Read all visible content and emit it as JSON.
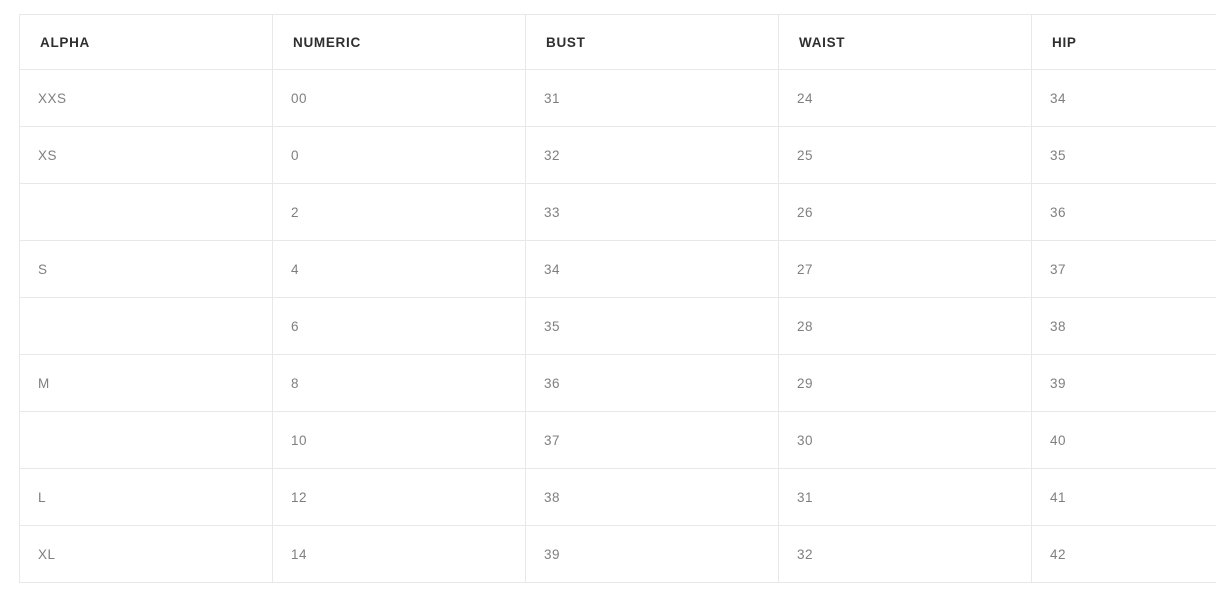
{
  "table": {
    "columns": [
      "ALPHA",
      "NUMERIC",
      "BUST",
      "WAIST",
      "HIP"
    ],
    "rows": [
      [
        "XXS",
        "00",
        "31",
        "24",
        "34"
      ],
      [
        "XS",
        "0",
        "32",
        "25",
        "35"
      ],
      [
        "",
        "2",
        "33",
        "26",
        "36"
      ],
      [
        "S",
        "4",
        "34",
        "27",
        "37"
      ],
      [
        "",
        "6",
        "35",
        "28",
        "38"
      ],
      [
        "M",
        "8",
        "36",
        "29",
        "39"
      ],
      [
        "",
        "10",
        "37",
        "30",
        "40"
      ],
      [
        "L",
        "12",
        "38",
        "31",
        "41"
      ],
      [
        "XL",
        "14",
        "39",
        "32",
        "42"
      ]
    ]
  },
  "colors": {
    "header_text": "#2f2f2f",
    "cell_text": "#7f7f7f",
    "border": "#e8e8e8",
    "background": "#ffffff"
  }
}
